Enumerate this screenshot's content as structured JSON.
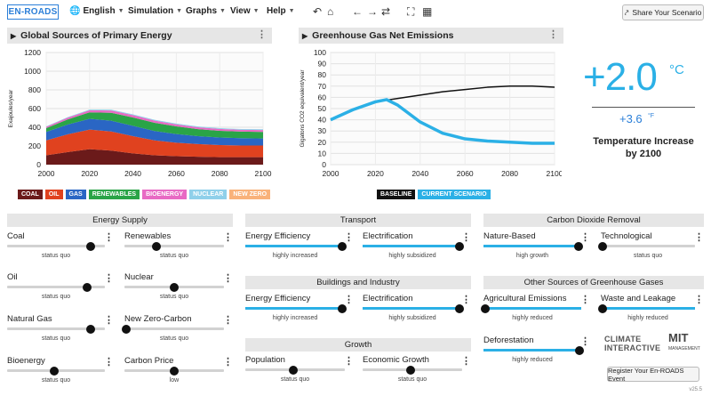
{
  "topbar": {
    "logo": "EN-ROADS",
    "menu": [
      "English",
      "Simulation",
      "Graphs",
      "View",
      "Help"
    ],
    "share_label": "Share Your Scenario"
  },
  "left_chart": {
    "title": "Global Sources of Primary Energy",
    "legend": [
      {
        "label": "COAL",
        "color": "#6b1a1a"
      },
      {
        "label": "OIL",
        "color": "#e0421f"
      },
      {
        "label": "GAS",
        "color": "#2a66c4"
      },
      {
        "label": "RENEWABLES",
        "color": "#2aa447"
      },
      {
        "label": "BIOENERGY",
        "color": "#e86ac4"
      },
      {
        "label": "NUCLEAR",
        "color": "#8fd0ea"
      },
      {
        "label": "NEW ZERO",
        "color": "#f9b27a"
      }
    ]
  },
  "right_chart": {
    "title": "Greenhouse Gas Net Emissions",
    "legend": [
      {
        "label": "BASELINE",
        "color": "#111111"
      },
      {
        "label": "CURRENT SCENARIO",
        "color": "#2bb0e6"
      }
    ]
  },
  "chart_data": [
    {
      "type": "area",
      "title": "Global Sources of Primary Energy",
      "ylabel": "Exajoules/year",
      "x": [
        2000,
        2010,
        2020,
        2030,
        2040,
        2050,
        2060,
        2070,
        2080,
        2090,
        2100
      ],
      "ylim": [
        0,
        1200
      ],
      "xticks": [
        "2000",
        "2020",
        "2040",
        "2060",
        "2080",
        "2100"
      ],
      "yticks": [
        "0",
        "200",
        "400",
        "600",
        "800",
        "1000",
        "1200"
      ],
      "series": [
        {
          "name": "COAL",
          "values": [
            100,
            135,
            165,
            150,
            120,
            100,
            90,
            85,
            80,
            80,
            80
          ]
        },
        {
          "name": "OIL",
          "values": [
            160,
            190,
            210,
            205,
            185,
            160,
            145,
            135,
            130,
            125,
            125
          ]
        },
        {
          "name": "GAS",
          "values": [
            90,
            105,
            115,
            115,
            110,
            100,
            92,
            85,
            80,
            78,
            75
          ]
        },
        {
          "name": "RENEWABLES",
          "values": [
            40,
            55,
            70,
            85,
            90,
            88,
            82,
            75,
            72,
            70,
            70
          ]
        },
        {
          "name": "BIOENERGY",
          "values": [
            15,
            18,
            22,
            25,
            25,
            24,
            22,
            20,
            20,
            20,
            20
          ]
        },
        {
          "name": "NUCLEAR",
          "values": [
            5,
            6,
            7,
            8,
            8,
            8,
            8,
            8,
            8,
            8,
            8
          ]
        },
        {
          "name": "NEW ZERO",
          "values": [
            0,
            0,
            0,
            0,
            0,
            0,
            0,
            0,
            0,
            0,
            0
          ]
        }
      ]
    },
    {
      "type": "line",
      "title": "Greenhouse Gas Net Emissions",
      "ylabel": "Gigatons CO2 equivalent/year",
      "xlim": [
        2000,
        2100
      ],
      "ylim": [
        0,
        100
      ],
      "xticks": [
        "2000",
        "2020",
        "2040",
        "2060",
        "2080",
        "2100"
      ],
      "yticks": [
        "0",
        "10",
        "20",
        "30",
        "40",
        "50",
        "60",
        "70",
        "80",
        "90",
        "100"
      ],
      "series": [
        {
          "name": "BASELINE",
          "x": [
            2000,
            2010,
            2020,
            2030,
            2040,
            2050,
            2060,
            2070,
            2080,
            2090,
            2100
          ],
          "values": [
            40,
            49,
            56,
            59,
            62,
            65,
            67,
            69,
            70,
            70,
            69
          ]
        },
        {
          "name": "CURRENT SCENARIO",
          "x": [
            2000,
            2010,
            2020,
            2025,
            2030,
            2040,
            2050,
            2060,
            2070,
            2080,
            2090,
            2100
          ],
          "values": [
            40,
            49,
            56,
            58,
            53,
            38,
            28,
            23,
            21,
            20,
            19,
            19
          ]
        }
      ]
    }
  ],
  "temperature": {
    "value": "+2.0",
    "unit": "°C",
    "value_f": "+3.6",
    "unit_f": "°F",
    "label": "Temperature Increase by 2100"
  },
  "sections": {
    "energy_supply": "Energy Supply",
    "transport": "Transport",
    "buildings": "Buildings and Industry",
    "growth": "Growth",
    "cdr": "Carbon Dioxide Removal",
    "other": "Other Sources of Greenhouse Gases"
  },
  "sliders": {
    "coal": {
      "label": "Coal",
      "status": "status quo",
      "value": 0.85
    },
    "renewables": {
      "label": "Renewables",
      "status": "status quo",
      "value": 0.32
    },
    "oil": {
      "label": "Oil",
      "status": "status quo",
      "value": 0.82
    },
    "nuclear": {
      "label": "Nuclear",
      "status": "status quo",
      "value": 0.5
    },
    "natural_gas": {
      "label": "Natural Gas",
      "status": "status quo",
      "value": 0.85
    },
    "new_zero": {
      "label": "New Zero-Carbon",
      "status": "status quo",
      "value": 0.02
    },
    "bioenergy": {
      "label": "Bioenergy",
      "status": "status quo",
      "value": 0.48
    },
    "carbon_price": {
      "label": "Carbon Price",
      "status": "low",
      "value": 0.5
    },
    "transport_efficiency": {
      "label": "Energy Efficiency",
      "status": "highly increased",
      "value": 0.97
    },
    "transport_electrification": {
      "label": "Electrification",
      "status": "highly subsidized",
      "value": 0.97
    },
    "buildings_efficiency": {
      "label": "Energy Efficiency",
      "status": "highly increased",
      "value": 0.97
    },
    "buildings_electrification": {
      "label": "Electrification",
      "status": "highly subsidized",
      "value": 0.97
    },
    "population": {
      "label": "Population",
      "status": "status quo",
      "value": 0.48
    },
    "economic_growth": {
      "label": "Economic Growth",
      "status": "status quo",
      "value": 0.48
    },
    "nature_based": {
      "label": "Nature-Based",
      "status": "high growth",
      "value": 0.97
    },
    "technological": {
      "label": "Technological",
      "status": "status quo",
      "value": 0.02
    },
    "agricultural": {
      "label": "Agricultural Emissions",
      "status": "highly reduced",
      "value": 0.02
    },
    "waste": {
      "label": "Waste and Leakage",
      "status": "highly reduced",
      "value": 0.02
    },
    "deforestation": {
      "label": "Deforestation",
      "status": "highly reduced",
      "value": 0.98
    }
  },
  "footer": {
    "brand1_line1": "CLIMATE",
    "brand1_line2": "INTERACTIVE",
    "brand2": "MIT",
    "brand2_sub": "MANAGEMENT",
    "register_label": "Register Your En-ROADS Event",
    "version": "v25.5"
  },
  "icons": [
    "undo-icon",
    "home-icon",
    "back-icon",
    "forward-icon",
    "refresh-icon",
    "fullscreen-icon",
    "grid-icon",
    "share-icon",
    "kebab-icon"
  ]
}
